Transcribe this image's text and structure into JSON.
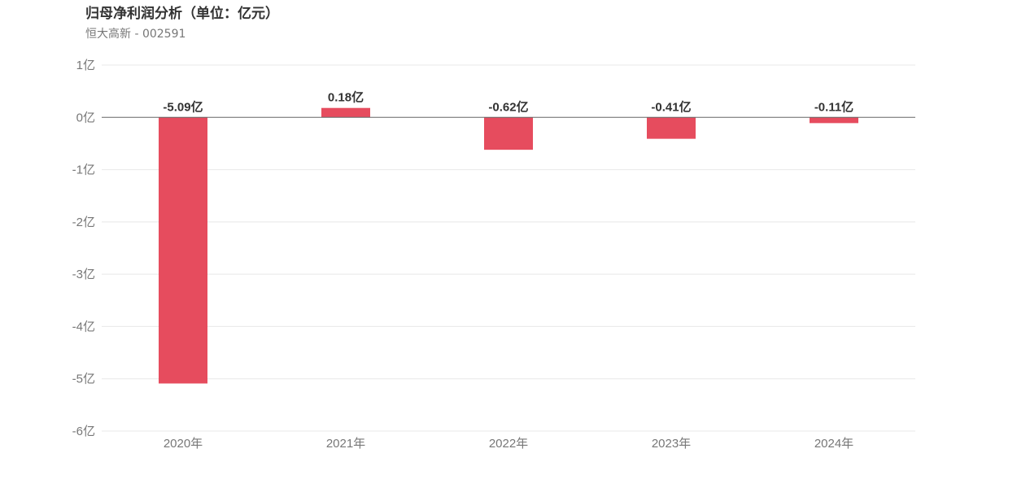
{
  "header": {
    "title": "归母净利润分析（单位：亿元）",
    "subtitle": "恒大高新 - 002591"
  },
  "chart_data": {
    "type": "bar",
    "categories": [
      "2020年",
      "2021年",
      "2022年",
      "2023年",
      "2024年"
    ],
    "values": [
      -5.09,
      0.18,
      -0.62,
      -0.41,
      -0.11
    ],
    "value_labels": [
      "-5.09亿",
      "0.18亿",
      "-0.62亿",
      "-0.41亿",
      "-0.11亿"
    ],
    "ylim": [
      -6,
      1
    ],
    "y_ticks": [
      1,
      0,
      -1,
      -2,
      -3,
      -4,
      -5,
      -6
    ],
    "y_tick_labels": [
      "1亿",
      "0亿",
      "-1亿",
      "-2亿",
      "-3亿",
      "-4亿",
      "-5亿",
      "-6亿"
    ],
    "grid": true,
    "legend": "none",
    "bar_color": "#e64c5e",
    "grid_color": "#e8e8e8",
    "zero_line_color": "#666666"
  }
}
